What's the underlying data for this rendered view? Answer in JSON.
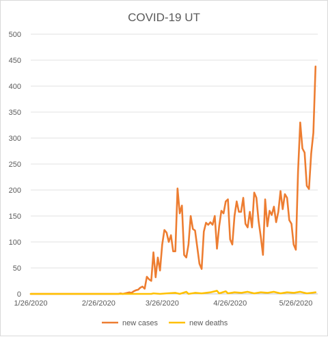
{
  "chart_data": {
    "type": "line",
    "title": "COVID-19 UT",
    "xlabel": "",
    "ylabel": "",
    "x_start": "2020-01-26",
    "x_end": "2020-06-05",
    "x_ticks": [
      "1/26/2020",
      "2/26/2020",
      "3/26/2020",
      "4/26/2020",
      "5/26/2020"
    ],
    "y_ticks": [
      0,
      50,
      100,
      150,
      200,
      250,
      300,
      350,
      400,
      450,
      500
    ],
    "ylim": [
      0,
      500
    ],
    "grid": true,
    "legend_position": "bottom",
    "series": [
      {
        "name": "new cases",
        "color": "#ED7D31",
        "points": [
          [
            "2020-01-26",
            0
          ],
          [
            "2020-02-26",
            0
          ],
          [
            "2020-03-06",
            0
          ],
          [
            "2020-03-07",
            1
          ],
          [
            "2020-03-08",
            0
          ],
          [
            "2020-03-09",
            1
          ],
          [
            "2020-03-10",
            2
          ],
          [
            "2020-03-11",
            3
          ],
          [
            "2020-03-12",
            2
          ],
          [
            "2020-03-13",
            5
          ],
          [
            "2020-03-14",
            7
          ],
          [
            "2020-03-15",
            8
          ],
          [
            "2020-03-16",
            12
          ],
          [
            "2020-03-17",
            14
          ],
          [
            "2020-03-18",
            10
          ],
          [
            "2020-03-19",
            33
          ],
          [
            "2020-03-20",
            28
          ],
          [
            "2020-03-21",
            25
          ],
          [
            "2020-03-22",
            80
          ],
          [
            "2020-03-23",
            32
          ],
          [
            "2020-03-24",
            70
          ],
          [
            "2020-03-25",
            45
          ],
          [
            "2020-03-26",
            95
          ],
          [
            "2020-03-27",
            123
          ],
          [
            "2020-03-28",
            118
          ],
          [
            "2020-03-29",
            100
          ],
          [
            "2020-03-30",
            113
          ],
          [
            "2020-03-31",
            82
          ],
          [
            "2020-04-01",
            82
          ],
          [
            "2020-04-02",
            203
          ],
          [
            "2020-04-03",
            155
          ],
          [
            "2020-04-04",
            170
          ],
          [
            "2020-04-05",
            75
          ],
          [
            "2020-04-06",
            70
          ],
          [
            "2020-04-07",
            95
          ],
          [
            "2020-04-08",
            150
          ],
          [
            "2020-04-09",
            125
          ],
          [
            "2020-04-10",
            122
          ],
          [
            "2020-04-11",
            90
          ],
          [
            "2020-04-12",
            58
          ],
          [
            "2020-04-13",
            48
          ],
          [
            "2020-04-14",
            120
          ],
          [
            "2020-04-15",
            137
          ],
          [
            "2020-04-16",
            133
          ],
          [
            "2020-04-17",
            138
          ],
          [
            "2020-04-18",
            133
          ],
          [
            "2020-04-19",
            150
          ],
          [
            "2020-04-20",
            87
          ],
          [
            "2020-04-21",
            130
          ],
          [
            "2020-04-22",
            160
          ],
          [
            "2020-04-23",
            155
          ],
          [
            "2020-04-24",
            178
          ],
          [
            "2020-04-25",
            182
          ],
          [
            "2020-04-26",
            105
          ],
          [
            "2020-04-27",
            95
          ],
          [
            "2020-04-28",
            150
          ],
          [
            "2020-04-29",
            178
          ],
          [
            "2020-04-30",
            158
          ],
          [
            "2020-05-01",
            158
          ],
          [
            "2020-05-02",
            185
          ],
          [
            "2020-05-03",
            135
          ],
          [
            "2020-05-04",
            128
          ],
          [
            "2020-05-05",
            158
          ],
          [
            "2020-05-06",
            128
          ],
          [
            "2020-05-07",
            195
          ],
          [
            "2020-05-08",
            185
          ],
          [
            "2020-05-09",
            140
          ],
          [
            "2020-05-10",
            110
          ],
          [
            "2020-05-11",
            75
          ],
          [
            "2020-05-12",
            182
          ],
          [
            "2020-05-13",
            130
          ],
          [
            "2020-05-14",
            160
          ],
          [
            "2020-05-15",
            152
          ],
          [
            "2020-05-16",
            168
          ],
          [
            "2020-05-17",
            138
          ],
          [
            "2020-05-18",
            158
          ],
          [
            "2020-05-19",
            198
          ],
          [
            "2020-05-20",
            163
          ],
          [
            "2020-05-21",
            192
          ],
          [
            "2020-05-22",
            185
          ],
          [
            "2020-05-23",
            142
          ],
          [
            "2020-05-24",
            135
          ],
          [
            "2020-05-25",
            95
          ],
          [
            "2020-05-26",
            85
          ],
          [
            "2020-05-27",
            235
          ],
          [
            "2020-05-28",
            330
          ],
          [
            "2020-05-29",
            280
          ],
          [
            "2020-05-30",
            272
          ],
          [
            "2020-05-31",
            208
          ],
          [
            "2020-06-01",
            202
          ],
          [
            "2020-06-02",
            270
          ],
          [
            "2020-06-03",
            310
          ],
          [
            "2020-06-04",
            438
          ]
        ]
      },
      {
        "name": "new deaths",
        "color": "#FFC000",
        "points": [
          [
            "2020-01-26",
            0
          ],
          [
            "2020-03-21",
            0
          ],
          [
            "2020-03-22",
            1
          ],
          [
            "2020-03-25",
            0
          ],
          [
            "2020-03-28",
            1
          ],
          [
            "2020-04-01",
            2
          ],
          [
            "2020-04-03",
            0
          ],
          [
            "2020-04-06",
            4
          ],
          [
            "2020-04-07",
            0
          ],
          [
            "2020-04-10",
            2
          ],
          [
            "2020-04-13",
            1
          ],
          [
            "2020-04-17",
            3
          ],
          [
            "2020-04-20",
            6
          ],
          [
            "2020-04-21",
            1
          ],
          [
            "2020-04-24",
            5
          ],
          [
            "2020-04-25",
            1
          ],
          [
            "2020-04-28",
            3
          ],
          [
            "2020-05-01",
            2
          ],
          [
            "2020-05-04",
            4
          ],
          [
            "2020-05-07",
            1
          ],
          [
            "2020-05-10",
            3
          ],
          [
            "2020-05-13",
            2
          ],
          [
            "2020-05-16",
            4
          ],
          [
            "2020-05-19",
            1
          ],
          [
            "2020-05-22",
            3
          ],
          [
            "2020-05-25",
            2
          ],
          [
            "2020-05-28",
            4
          ],
          [
            "2020-05-31",
            1
          ],
          [
            "2020-06-02",
            2
          ],
          [
            "2020-06-04",
            3
          ]
        ]
      }
    ]
  }
}
